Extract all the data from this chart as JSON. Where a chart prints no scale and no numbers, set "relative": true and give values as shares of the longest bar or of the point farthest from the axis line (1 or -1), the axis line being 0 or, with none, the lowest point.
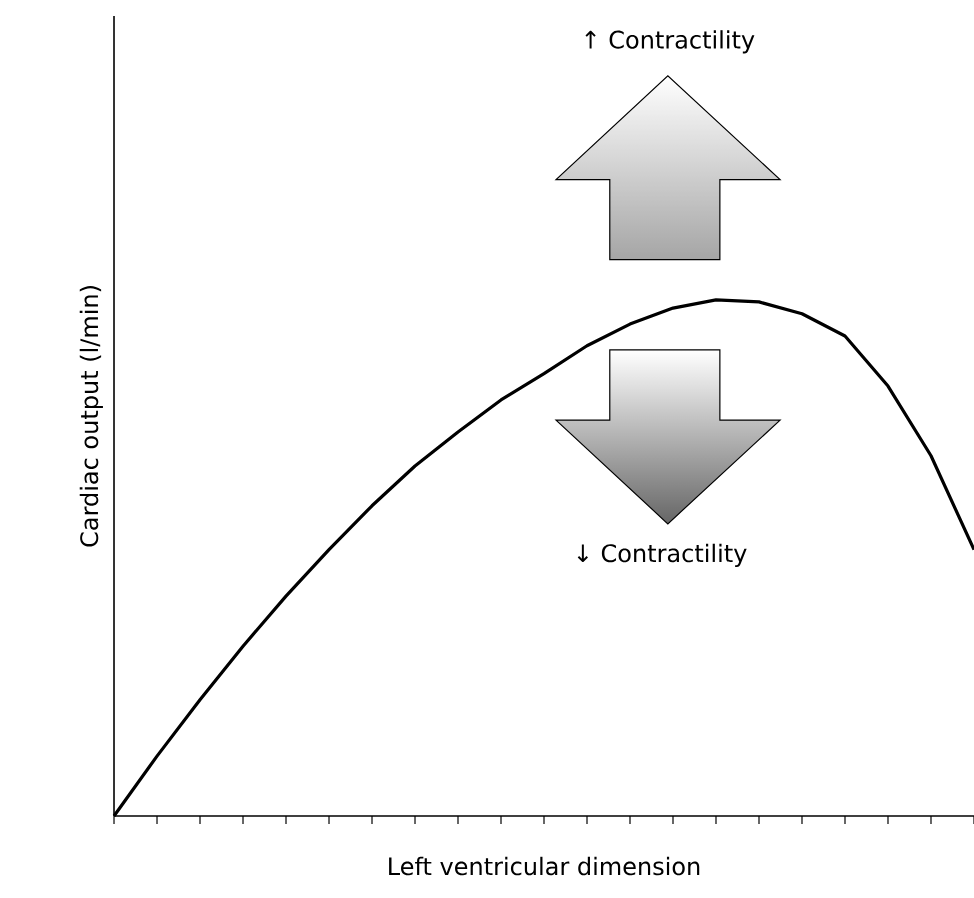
{
  "chart_data": {
    "type": "line",
    "xlabel": "Left ventricular dimension",
    "ylabel": "Cardiac output (l/min)",
    "categories": [
      null,
      null,
      null,
      null,
      null,
      null,
      null,
      null,
      null,
      null,
      null,
      null,
      null,
      null,
      null,
      null,
      null,
      null,
      null,
      null,
      null
    ],
    "relative": true,
    "series": [
      {
        "color": "#000000",
        "values": [
          0,
          0.116,
          0.225,
          0.329,
          0.426,
          0.516,
          0.601,
          0.678,
          0.744,
          0.806,
          0.857,
          0.911,
          0.953,
          0.984,
          1,
          0.996,
          0.973,
          0.93,
          0.833,
          0.698,
          0.516
        ]
      }
    ],
    "marker": "none",
    "line_style": "solid",
    "annotations": [
      "↑ Contractility",
      "↓ Contractility"
    ]
  }
}
